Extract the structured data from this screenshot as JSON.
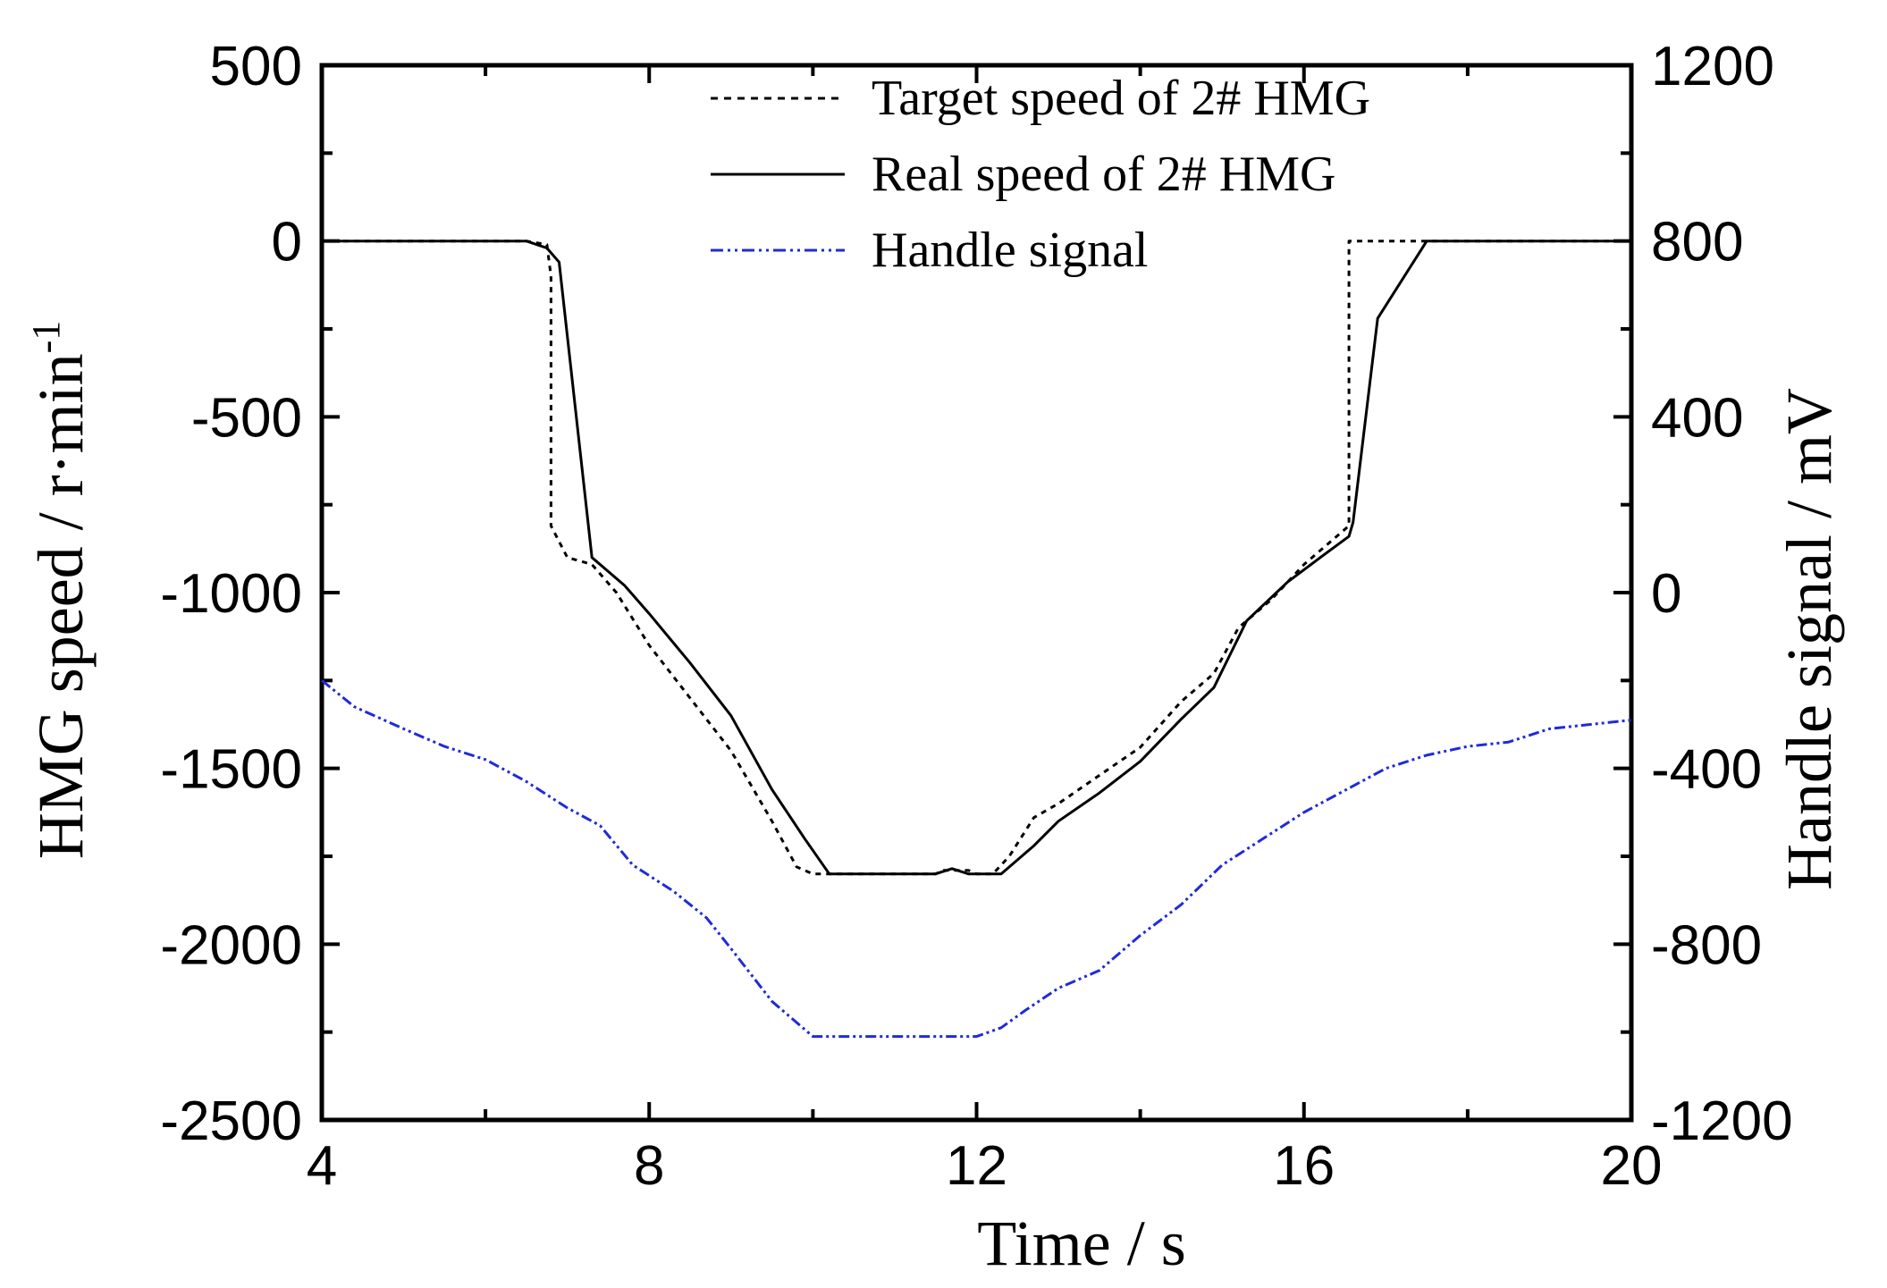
{
  "chart_data": {
    "type": "line",
    "title": "",
    "xlabel": "Time  / s",
    "ylabel_left": "HMG speed  / r·min",
    "ylabel_left_superscript": "-1",
    "ylabel_right": "Handle signal / mV",
    "xlim": [
      4,
      20
    ],
    "ylim_left": [
      -2500,
      500
    ],
    "ylim_right": [
      -1200,
      1200
    ],
    "x_ticks": [
      "4",
      "8",
      "12",
      "16",
      "20"
    ],
    "x_tick_values": [
      4,
      8,
      12,
      16,
      20
    ],
    "y_left_ticks": [
      "500",
      "0",
      "-500",
      "-1000",
      "-1500",
      "-2000",
      "-2500"
    ],
    "y_left_tick_values": [
      500,
      0,
      -500,
      -1000,
      -1500,
      -2000,
      -2500
    ],
    "y_right_ticks": [
      "1200",
      "800",
      "400",
      "0",
      "-400",
      "-800",
      "-1200"
    ],
    "y_right_tick_values": [
      1200,
      800,
      400,
      0,
      -400,
      -800,
      -1200
    ],
    "legend_position": "top-right",
    "series": [
      {
        "name": "Target speed of 2# HMG",
        "axis": "left",
        "style": "dotted",
        "color": "#000000",
        "x": [
          4,
          6.5,
          6.75,
          6.8,
          6.8,
          7.0,
          7.3,
          7.6,
          8.0,
          8.5,
          9.0,
          9.5,
          9.8,
          10.0,
          11.5,
          11.6,
          11.9,
          12.0,
          12.2,
          12.4,
          12.7,
          13.0,
          13.5,
          14.0,
          14.5,
          14.9,
          15.2,
          15.6,
          16.0,
          16.45,
          16.55,
          16.55,
          17.5,
          20
        ],
        "y": [
          0,
          0,
          -10,
          -100,
          -810,
          -900,
          -920,
          -1000,
          -1150,
          -1300,
          -1450,
          -1650,
          -1780,
          -1800,
          -1800,
          -1790,
          -1790,
          -1800,
          -1800,
          -1750,
          -1640,
          -1600,
          -1520,
          -1440,
          -1310,
          -1230,
          -1100,
          -1020,
          -920,
          -830,
          -810,
          0,
          0,
          0
        ]
      },
      {
        "name": "Real speed of 2# HMG",
        "axis": "left",
        "style": "solid",
        "color": "#000000",
        "x": [
          4,
          6.5,
          6.75,
          6.9,
          7.3,
          7.7,
          8.0,
          8.5,
          9.0,
          9.5,
          9.9,
          10.2,
          11.5,
          11.7,
          11.9,
          12.0,
          12.3,
          12.7,
          13.0,
          13.5,
          14.0,
          14.5,
          14.9,
          15.3,
          15.8,
          16.2,
          16.55,
          16.6,
          16.9,
          17.5,
          20
        ],
        "y": [
          0,
          0,
          -20,
          -60,
          -900,
          -980,
          -1060,
          -1200,
          -1350,
          -1560,
          -1700,
          -1800,
          -1800,
          -1785,
          -1800,
          -1800,
          -1800,
          -1720,
          -1650,
          -1570,
          -1480,
          -1360,
          -1270,
          -1080,
          -970,
          -900,
          -840,
          -800,
          -220,
          0,
          0
        ]
      },
      {
        "name": "Handle signal",
        "axis": "right",
        "style": "dash-dot",
        "color": "#1f2bd8",
        "x": [
          4,
          4.4,
          5.0,
          5.5,
          6.0,
          6.5,
          7.0,
          7.4,
          7.8,
          8.3,
          8.7,
          9.0,
          9.5,
          10.0,
          11.0,
          12.0,
          12.3,
          12.6,
          13.0,
          13.5,
          14.0,
          14.5,
          15.0,
          15.5,
          16.0,
          16.5,
          17.0,
          17.5,
          18.0,
          18.5,
          19.0,
          19.5,
          20
        ],
        "y": [
          -200,
          -260,
          -310,
          -350,
          -380,
          -430,
          -490,
          -530,
          -620,
          -680,
          -740,
          -810,
          -930,
          -1010,
          -1010,
          -1010,
          -990,
          -950,
          -900,
          -860,
          -780,
          -710,
          -620,
          -560,
          -500,
          -450,
          -400,
          -370,
          -350,
          -340,
          -310,
          -300,
          -290
        ]
      }
    ]
  }
}
